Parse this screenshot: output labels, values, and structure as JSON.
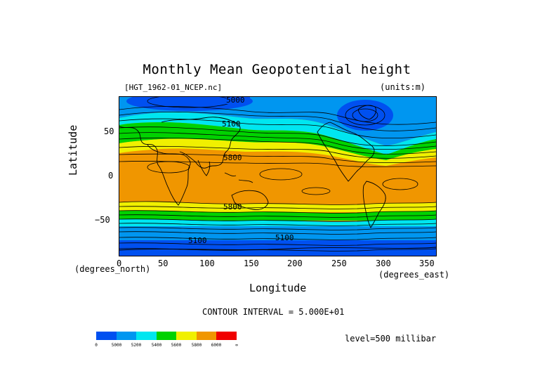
{
  "title": "Monthly Mean Geopotential height",
  "file_label": "[HGT_1962-01_NCEP.nc]",
  "units_label": "(units:m)",
  "ylabel": "Latitude",
  "y_unit": "(degrees_north)",
  "xlabel": "Longitude",
  "x_unit": "(degrees_east)",
  "contour_interval": "CONTOUR INTERVAL = 5.000E+01",
  "level_label": "level=500 millibar",
  "y_ticks": [
    "50",
    "0",
    "−50"
  ],
  "x_ticks": [
    "0",
    "50",
    "100",
    "150",
    "200",
    "250",
    "300",
    "350"
  ],
  "contour_labels": [
    "5000",
    "5100",
    "5800",
    "5800",
    "5100",
    "5100"
  ],
  "colorbar": {
    "colors": [
      "#0050f0",
      "#0096f0",
      "#00e6f0",
      "#00d200",
      "#f0f000",
      "#f09600",
      "#f00000"
    ],
    "labels": [
      "0",
      "5000",
      "5200",
      "5400",
      "5600",
      "5800",
      "6000",
      "∞"
    ]
  },
  "map_colors": {
    "deep_blue": "#0050f0",
    "blue": "#0096f0",
    "cyan": "#00e6f0",
    "green": "#00d200",
    "yellow": "#f0f000",
    "orange": "#f09600"
  }
}
